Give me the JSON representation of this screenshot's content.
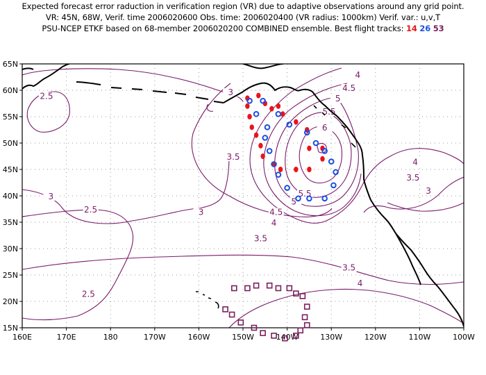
{
  "header": {
    "line1": "Expected forecast error raduction in verification region (VR) due to adaptive observations around any grid point.",
    "line2": "VR: 45N, 68W, Verif. time 2006020600   Obs. time: 2006020400 (VR radius: 1000km)     Verif. var.: u,v,T",
    "line3_prefix": "PSU-NCEP ETKF based on 68-member 2006020200 COMBINED ensemble.   Best flight tracks:",
    "track_ids": [
      "14",
      "26",
      "53"
    ]
  },
  "colors": {
    "contour": "#7a1a6a",
    "coast": "#000000",
    "grid": "#999999",
    "track14": "#e8141c",
    "track26": "#1b4fe0",
    "track53": "#7a1f5c"
  },
  "axes": {
    "x_labels": [
      "160E",
      "170E",
      "180",
      "170W",
      "160W",
      "150W",
      "140W",
      "130W",
      "120W",
      "110W",
      "100W"
    ],
    "y_labels": [
      "65N",
      "60N",
      "55N",
      "50N",
      "45N",
      "40N",
      "35N",
      "30N",
      "25N",
      "20N",
      "15N"
    ],
    "lon_range": [
      160,
      260
    ],
    "lat_range": [
      15,
      65
    ]
  },
  "contour_labels": [
    {
      "text": "2.5",
      "lon": 165.5,
      "lat": 58.5
    },
    {
      "text": "3",
      "lon": 166.5,
      "lat": 39.5
    },
    {
      "text": "2.5",
      "lon": 175.5,
      "lat": 37.0
    },
    {
      "text": "3",
      "lon": 200.5,
      "lat": 36.5
    },
    {
      "text": "3.5",
      "lon": 207.8,
      "lat": 47.0
    },
    {
      "text": "3",
      "lon": 207.2,
      "lat": 59.2
    },
    {
      "text": "2.5",
      "lon": 175.0,
      "lat": 21.0
    },
    {
      "text": "4",
      "lon": 236.0,
      "lat": 62.5
    },
    {
      "text": "4.5",
      "lon": 234.0,
      "lat": 60.0
    },
    {
      "text": "5",
      "lon": 231.5,
      "lat": 58.0
    },
    {
      "text": "5.5",
      "lon": 229.5,
      "lat": 55.5
    },
    {
      "text": "6",
      "lon": 228.5,
      "lat": 52.5
    },
    {
      "text": "5.5",
      "lon": 224.0,
      "lat": 40.0
    },
    {
      "text": "5",
      "lon": 221.5,
      "lat": 38.5
    },
    {
      "text": "4.5",
      "lon": 217.5,
      "lat": 36.5
    },
    {
      "text": "4",
      "lon": 217.0,
      "lat": 34.5
    },
    {
      "text": "3.5",
      "lon": 214.0,
      "lat": 31.5
    },
    {
      "text": "4",
      "lon": 249.0,
      "lat": 46.0
    },
    {
      "text": "3.5",
      "lon": 248.5,
      "lat": 43.0
    },
    {
      "text": "3",
      "lon": 252.0,
      "lat": 40.5
    },
    {
      "text": "3.5",
      "lon": 234.0,
      "lat": 26.0
    },
    {
      "text": "4",
      "lon": 236.5,
      "lat": 23.0
    }
  ],
  "tracks": {
    "t14": [
      [
        211.0,
        58.5
      ],
      [
        213.5,
        59.0
      ],
      [
        216.5,
        56.5
      ],
      [
        219.0,
        55.5
      ],
      [
        222.0,
        54.0
      ],
      [
        224.5,
        52.5
      ],
      [
        225.0,
        49.0
      ],
      [
        225.0,
        45.0
      ],
      [
        222.0,
        45.0
      ],
      [
        218.5,
        45.0
      ],
      [
        217.0,
        46.0
      ],
      [
        214.5,
        47.5
      ],
      [
        214.0,
        49.5
      ],
      [
        213.0,
        51.5
      ],
      [
        212.0,
        53.0
      ],
      [
        211.5,
        55.0
      ],
      [
        211.0,
        57.0
      ],
      [
        215.0,
        57.5
      ],
      [
        218.0,
        57.0
      ],
      [
        228.0,
        49.0
      ],
      [
        228.0,
        47.0
      ]
    ],
    "t26": [
      [
        211.5,
        58.0
      ],
      [
        214.5,
        58.0
      ],
      [
        213.0,
        55.5
      ],
      [
        215.5,
        53.0
      ],
      [
        215.0,
        51.0
      ],
      [
        216.0,
        48.5
      ],
      [
        217.0,
        46.0
      ],
      [
        218.0,
        44.0
      ],
      [
        220.0,
        41.5
      ],
      [
        222.5,
        39.5
      ],
      [
        225.0,
        39.5
      ],
      [
        228.5,
        39.5
      ],
      [
        230.5,
        42.0
      ],
      [
        231.0,
        44.5
      ],
      [
        230.0,
        46.5
      ],
      [
        228.5,
        48.5
      ],
      [
        226.5,
        50.0
      ],
      [
        224.5,
        52.0
      ],
      [
        220.5,
        53.5
      ],
      [
        218.0,
        55.5
      ]
    ],
    "t53": [
      [
        206.0,
        18.5
      ],
      [
        207.5,
        17.5
      ],
      [
        208.0,
        22.5
      ],
      [
        209.5,
        16.0
      ],
      [
        211.0,
        22.5
      ],
      [
        212.5,
        15.0
      ],
      [
        213.0,
        23.0
      ],
      [
        214.5,
        14.0
      ],
      [
        216.0,
        23.0
      ],
      [
        217.0,
        13.5
      ],
      [
        218.0,
        22.5
      ],
      [
        219.5,
        13.0
      ],
      [
        220.5,
        22.5
      ],
      [
        222.0,
        13.5
      ],
      [
        222.0,
        21.5
      ],
      [
        223.0,
        14.5
      ],
      [
        223.5,
        21.0
      ],
      [
        224.5,
        15.5
      ],
      [
        224.5,
        19.0
      ],
      [
        224.0,
        17.0
      ]
    ]
  }
}
